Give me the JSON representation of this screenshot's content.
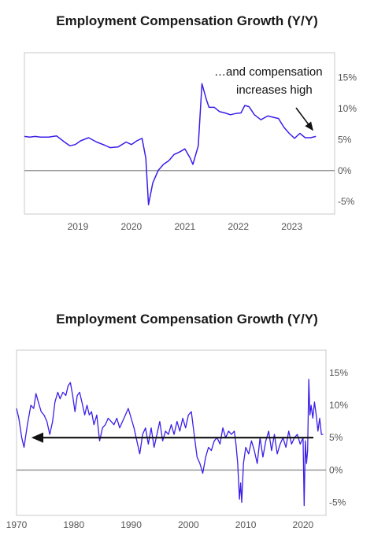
{
  "chart_data": [
    {
      "type": "line",
      "title": "Employment Compensation Growth (Y/Y)",
      "x_ticks": [
        "2019",
        "2020",
        "2021",
        "2022",
        "2023"
      ],
      "y_ticks": [
        "15%",
        "10%",
        "5%",
        "0%",
        "-5%"
      ],
      "xlim": [
        2018.0,
        2023.8
      ],
      "ylim": [
        -7,
        19
      ],
      "grid": false,
      "zero_line": true,
      "line_color": "#3a1ee8",
      "axis_line_color": "#999999",
      "series": [
        {
          "x": [
            2018.0,
            2018.1,
            2018.2,
            2018.3,
            2018.45,
            2018.6,
            2018.75,
            2018.85,
            2018.95,
            2019.05,
            2019.2,
            2019.35,
            2019.5,
            2019.6,
            2019.75,
            2019.9,
            2020.0,
            2020.1,
            2020.2,
            2020.27,
            2020.32,
            2020.4,
            2020.5,
            2020.6,
            2020.7,
            2020.8,
            2020.9,
            2021.0,
            2021.1,
            2021.15,
            2021.25,
            2021.32,
            2021.4,
            2021.45,
            2021.55,
            2021.65,
            2021.75,
            2021.85,
            2021.95,
            2022.05,
            2022.12,
            2022.2,
            2022.3,
            2022.42,
            2022.55,
            2022.65,
            2022.75,
            2022.85,
            2022.95,
            2023.05,
            2023.15,
            2023.25,
            2023.35,
            2023.45
          ],
          "y": [
            5.5,
            5.4,
            5.5,
            5.4,
            5.4,
            5.6,
            4.6,
            4.0,
            4.2,
            4.8,
            5.3,
            4.6,
            4.1,
            3.7,
            3.8,
            4.6,
            4.2,
            4.8,
            5.2,
            2.0,
            -5.5,
            -2.0,
            0.0,
            1.0,
            1.6,
            2.6,
            3.0,
            3.5,
            2.0,
            1.0,
            4.0,
            14.0,
            11.5,
            10.2,
            10.2,
            9.5,
            9.3,
            9.0,
            9.2,
            9.3,
            10.5,
            10.3,
            9.0,
            8.2,
            8.8,
            8.6,
            8.4,
            7.0,
            6.0,
            5.2,
            6.0,
            5.3,
            5.3,
            5.5
          ]
        }
      ],
      "annotation": {
        "line1": "…and compensation",
        "line2": "increases high"
      }
    },
    {
      "type": "line",
      "title": "Employment Compensation Growth (Y/Y)",
      "x_ticks": [
        "1970",
        "1980",
        "1990",
        "2000",
        "2010",
        "2020"
      ],
      "y_ticks": [
        "15%",
        "10%",
        "5%",
        "0%",
        "-5%"
      ],
      "xlim": [
        1970,
        2024
      ],
      "ylim": [
        -7,
        18.5
      ],
      "grid": false,
      "zero_line": true,
      "line_color": "#3a1ee8",
      "axis_line_color": "#999999",
      "reference_arrow_y": 5.0,
      "series": [
        {
          "x": [
            1970.0,
            1970.4,
            1970.9,
            1971.3,
            1971.9,
            1972.5,
            1973.0,
            1973.4,
            1973.8,
            1974.3,
            1974.8,
            1975.3,
            1975.8,
            1976.3,
            1976.7,
            1977.2,
            1977.6,
            1978.1,
            1978.6,
            1979.0,
            1979.4,
            1979.8,
            1980.2,
            1980.6,
            1981.0,
            1981.4,
            1981.9,
            1982.3,
            1982.7,
            1983.1,
            1983.5,
            1984.0,
            1984.5,
            1985.0,
            1985.5,
            1986.0,
            1986.5,
            1987.0,
            1987.5,
            1988.0,
            1988.5,
            1989.0,
            1989.5,
            1990.0,
            1990.5,
            1991.0,
            1991.5,
            1992.0,
            1992.5,
            1993.0,
            1993.5,
            1994.0,
            1994.5,
            1995.0,
            1995.5,
            1996.0,
            1996.5,
            1997.0,
            1997.5,
            1998.0,
            1998.5,
            1999.0,
            1999.5,
            2000.0,
            2000.5,
            2001.0,
            2001.5,
            2002.0,
            2002.5,
            2003.0,
            2003.5,
            2004.0,
            2004.5,
            2005.0,
            2005.5,
            2006.0,
            2006.5,
            2007.0,
            2007.5,
            2008.0,
            2008.3,
            2008.6,
            2008.9,
            2009.1,
            2009.3,
            2009.6,
            2010.0,
            2010.5,
            2011.0,
            2011.5,
            2012.0,
            2012.5,
            2013.0,
            2013.5,
            2014.0,
            2014.5,
            2015.0,
            2015.5,
            2016.0,
            2016.5,
            2017.0,
            2017.5,
            2018.0,
            2018.5,
            2019.0,
            2019.5,
            2020.0,
            2020.2,
            2020.4,
            2020.6,
            2020.8,
            2021.0,
            2021.2,
            2021.4,
            2021.7,
            2022.0,
            2022.3,
            2022.6,
            2022.9,
            2023.2,
            2023.5
          ],
          "y": [
            9.5,
            8.0,
            5.0,
            3.5,
            7.0,
            10.0,
            9.5,
            11.8,
            10.5,
            9.0,
            8.5,
            7.5,
            5.5,
            7.5,
            10.5,
            12.0,
            11.0,
            12.0,
            11.5,
            13.0,
            13.5,
            11.5,
            9.0,
            11.5,
            12.0,
            10.5,
            8.5,
            10.0,
            8.5,
            9.0,
            7.0,
            8.5,
            4.5,
            6.5,
            7.0,
            8.0,
            7.5,
            7.0,
            8.0,
            6.5,
            7.5,
            8.5,
            9.5,
            8.0,
            6.5,
            4.5,
            2.5,
            5.5,
            6.5,
            4.0,
            6.5,
            3.5,
            5.5,
            7.5,
            4.5,
            6.0,
            5.5,
            7.0,
            5.5,
            7.5,
            6.0,
            8.0,
            6.5,
            8.5,
            9.0,
            5.5,
            2.0,
            1.0,
            -0.5,
            2.0,
            3.5,
            3.0,
            4.5,
            5.0,
            4.0,
            6.5,
            5.0,
            6.0,
            5.5,
            6.0,
            4.0,
            1.0,
            -4.5,
            -2.0,
            -5.0,
            1.0,
            3.5,
            2.5,
            4.5,
            3.0,
            1.0,
            5.0,
            2.0,
            4.5,
            6.0,
            3.0,
            5.5,
            2.5,
            4.0,
            5.0,
            3.5,
            6.0,
            4.0,
            5.0,
            5.5,
            4.0,
            5.0,
            -5.5,
            4.5,
            1.0,
            3.0,
            14.0,
            8.5,
            10.0,
            8.0,
            10.5,
            8.5,
            6.0,
            8.0,
            5.5,
            5.5
          ]
        }
      ]
    }
  ]
}
